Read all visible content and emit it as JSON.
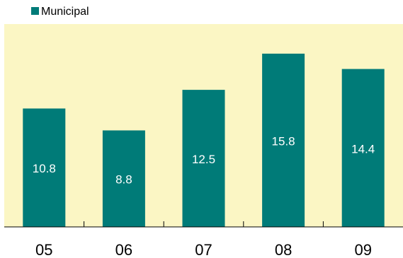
{
  "colors": {
    "plot_background": "#fbf6c4",
    "bar": "#007b78",
    "axis": "#000000",
    "data_label": "#ffffff"
  },
  "chart_data": {
    "type": "bar",
    "title": "",
    "xlabel": "",
    "ylabel": "",
    "categories": [
      "05",
      "06",
      "07",
      "08",
      "09"
    ],
    "series": [
      {
        "name": "Municipal",
        "values": [
          10.8,
          8.8,
          12.5,
          15.8,
          14.4
        ]
      }
    ],
    "ylim": [
      0,
      18.5
    ],
    "grid": false,
    "legend": "top-left",
    "data_labels": [
      "10.8",
      "8.8",
      "12.5",
      "15.8",
      "14.4"
    ]
  }
}
